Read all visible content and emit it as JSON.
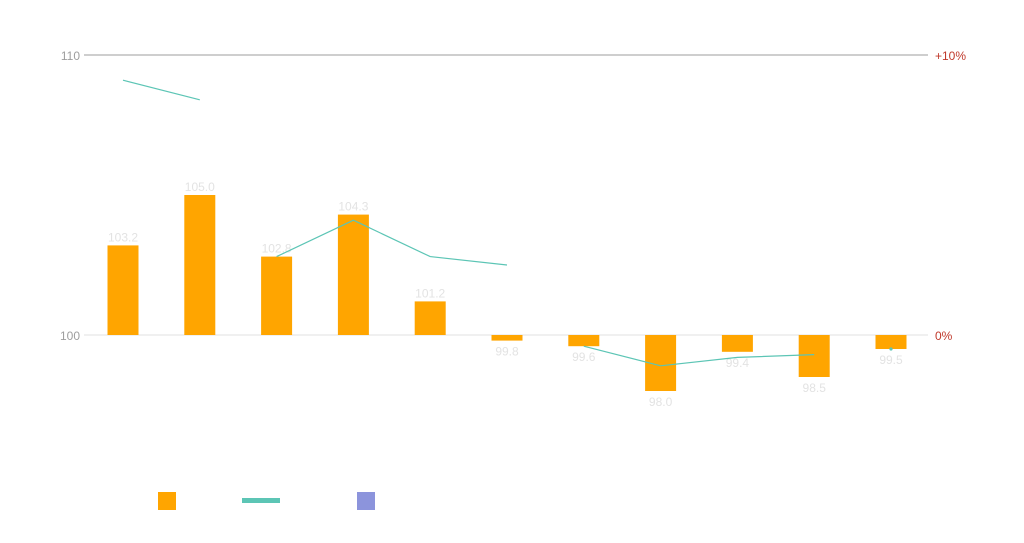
{
  "chart_data": {
    "type": "bar",
    "categories": [
      "",
      "",
      "",
      "",
      "",
      "",
      "",
      "",
      "",
      "",
      ""
    ],
    "bar_series": {
      "name": "",
      "color": "#FFA500",
      "values": [
        103.2,
        105.0,
        102.8,
        104.3,
        101.2,
        99.8,
        99.6,
        98.0,
        99.4,
        98.5,
        99.5
      ],
      "labels": [
        "103.2",
        "105.0",
        "102.8",
        "104.3",
        "101.2",
        "99.8",
        "99.6",
        "98.0",
        "99.4",
        "98.5",
        "99.5"
      ]
    },
    "line_series": {
      "name": "",
      "color": "#5CC5B5",
      "axis": "right",
      "segments": [
        [
          {
            "x": 0,
            "y": 9.1
          },
          {
            "x": 1,
            "y": 8.4
          }
        ],
        [
          {
            "x": 2,
            "y": 2.8
          },
          {
            "x": 3,
            "y": 4.1
          },
          {
            "x": 4,
            "y": 2.8
          },
          {
            "x": 5,
            "y": 2.5
          }
        ],
        [
          {
            "x": 6,
            "y": -0.4
          },
          {
            "x": 7,
            "y": -1.1
          },
          {
            "x": 8,
            "y": -0.8
          },
          {
            "x": 9,
            "y": -0.7
          }
        ],
        [
          {
            "x": 10,
            "y": -0.5
          }
        ]
      ]
    },
    "left_axis": {
      "ticks": [
        {
          "value": 100,
          "label": "100"
        },
        {
          "value": 110,
          "label": "110"
        }
      ],
      "range": [
        100,
        110
      ]
    },
    "right_axis": {
      "ticks": [
        {
          "value": 0,
          "label": "0%"
        },
        {
          "value": 10,
          "label": "+10%"
        }
      ],
      "range": [
        0,
        10
      ],
      "color": "#C0392B"
    },
    "legend": {
      "placement": "bottom-left",
      "items": [
        {
          "kind": "bar",
          "color": "#FFA500",
          "label": ""
        },
        {
          "kind": "line",
          "color": "#5CC5B5",
          "label": ""
        },
        {
          "kind": "bar",
          "color": "#8C94DC",
          "label": ""
        }
      ]
    },
    "colors": {
      "gridline": "#9E9E9E",
      "baseline": "#E0E0E0",
      "left_tick": "#9E9E9E",
      "data_label": "#E3E3E3"
    }
  }
}
